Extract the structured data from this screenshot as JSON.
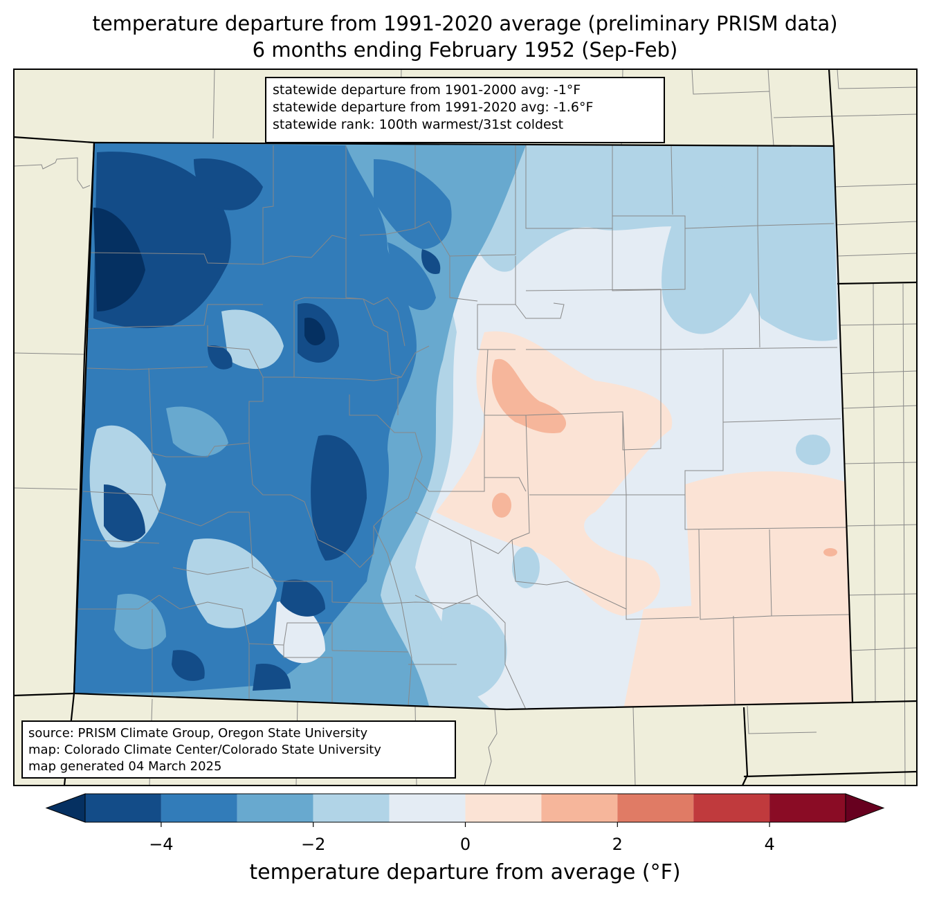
{
  "title_line1": "temperature departure from 1991-2020 average (preliminary PRISM data)",
  "title_line2": "6 months ending February 1952 (Sep-Feb)",
  "stats": {
    "line1": "statewide departure from 1901-2000 avg: -1°F",
    "line2": "statewide departure from 1991-2020 avg: -1.6°F",
    "line3": "statewide rank: 100th warmest/31st coldest"
  },
  "source": {
    "line1": "source: PRISM Climate Group, Oregon State University",
    "line2": "map: Colorado Climate Center/Colorado State University",
    "line3": "map generated 04 March 2025"
  },
  "colorbar": {
    "label": "temperature departure from average (°F)",
    "ticks": [
      "−4",
      "−2",
      "0",
      "2",
      "4"
    ],
    "tick_values": [
      -4,
      -2,
      0,
      2,
      4
    ],
    "bins": [
      -5,
      -4,
      -3,
      -2,
      -1,
      0,
      1,
      2,
      3,
      4,
      5
    ],
    "colors": [
      "#053061",
      "#134c88",
      "#327cb9",
      "#68a9cf",
      "#b1d4e7",
      "#e4ecf4",
      "#fbe3d5",
      "#f6b69b",
      "#e07b65",
      "#c03a3d",
      "#8a0c25",
      "#67001f"
    ]
  },
  "map_colors": {
    "land": "#efeedb",
    "state_border": "#000000",
    "county_border": "#888888"
  }
}
